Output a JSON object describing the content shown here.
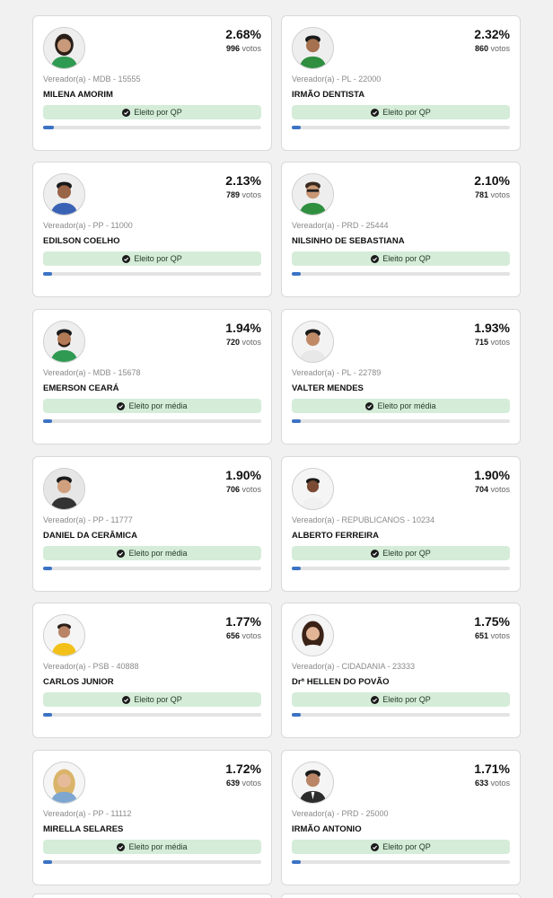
{
  "votes_suffix": "votos",
  "candidates": [
    {
      "pct": "2.68%",
      "votes": "996",
      "meta": "Vereador(a) - MDB - 15555",
      "name": "MILENA AMORIM",
      "status": "Eleito por QP",
      "progress": 0.0268
    },
    {
      "pct": "2.32%",
      "votes": "860",
      "meta": "Vereador(a) - PL - 22000",
      "name": "IRMÃO DENTISTA",
      "status": "Eleito por QP",
      "progress": 0.0232
    },
    {
      "pct": "2.13%",
      "votes": "789",
      "meta": "Vereador(a) - PP - 11000",
      "name": "EDILSON COELHO",
      "status": "Eleito por QP",
      "progress": 0.0213
    },
    {
      "pct": "2.10%",
      "votes": "781",
      "meta": "Vereador(a) - PRD - 25444",
      "name": "NILSINHO DE SEBASTIANA",
      "status": "Eleito por QP",
      "progress": 0.021
    },
    {
      "pct": "1.94%",
      "votes": "720",
      "meta": "Vereador(a) - MDB - 15678",
      "name": "EMERSON CEARÁ",
      "status": "Eleito por média",
      "progress": 0.0194
    },
    {
      "pct": "1.93%",
      "votes": "715",
      "meta": "Vereador(a) - PL - 22789",
      "name": "VALTER MENDES",
      "status": "Eleito por média",
      "progress": 0.0193
    },
    {
      "pct": "1.90%",
      "votes": "706",
      "meta": "Vereador(a) - PP - 11777",
      "name": "DANIEL DA CERÂMICA",
      "status": "Eleito por média",
      "progress": 0.019
    },
    {
      "pct": "1.90%",
      "votes": "704",
      "meta": "Vereador(a) - REPUBLICANOS - 10234",
      "name": "ALBERTO FERREIRA",
      "status": "Eleito por QP",
      "progress": 0.019
    },
    {
      "pct": "1.77%",
      "votes": "656",
      "meta": "Vereador(a) - PSB - 40888",
      "name": "CARLOS JUNIOR",
      "status": "Eleito por QP",
      "progress": 0.0177
    },
    {
      "pct": "1.75%",
      "votes": "651",
      "meta": "Vereador(a) - CIDADANIA - 23333",
      "name": "Drª HELLEN DO POVÃO",
      "status": "Eleito por QP",
      "progress": 0.0175
    },
    {
      "pct": "1.72%",
      "votes": "639",
      "meta": "Vereador(a) - PP - 11112",
      "name": "MIRELLA SELARES",
      "status": "Eleito por média",
      "progress": 0.0172
    },
    {
      "pct": "1.71%",
      "votes": "633",
      "meta": "Vereador(a) - PRD - 25000",
      "name": "IRMÃO ANTONIO",
      "status": "Eleito por QP",
      "progress": 0.0171
    }
  ],
  "colors": {
    "status_bg": "#d5ecd9",
    "progress_fill": "#3b73c4",
    "progress_track": "#e3e3e3"
  },
  "icons": {
    "status": "check-circle-icon",
    "avatar": "candidate-photo"
  }
}
